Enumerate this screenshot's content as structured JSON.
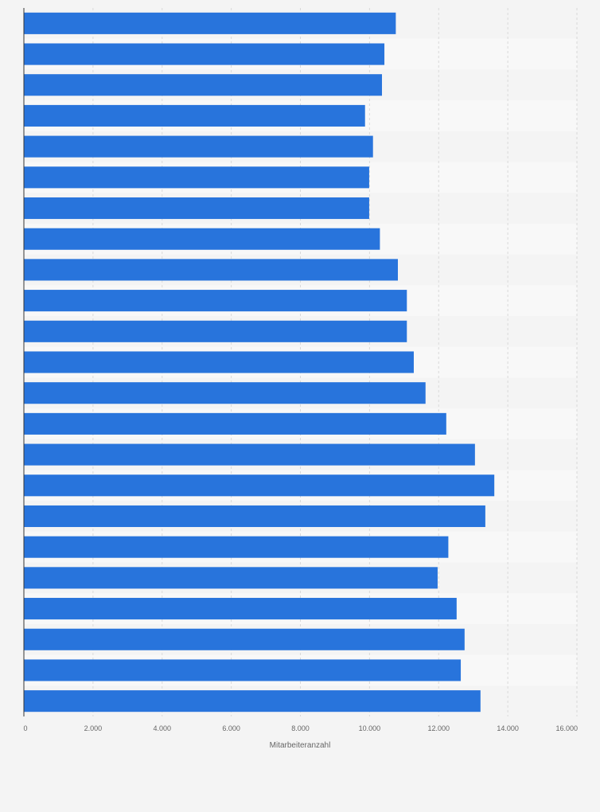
{
  "chart_data": {
    "type": "bar",
    "orientation": "horizontal",
    "xlabel": "Mitarbeiteranzahl",
    "xlim": [
      0,
      16000
    ],
    "xticks": [
      {
        "value": 0,
        "label": "0"
      },
      {
        "value": 2000,
        "label": "2.000"
      },
      {
        "value": 4000,
        "label": "4.000"
      },
      {
        "value": 6000,
        "label": "6.000"
      },
      {
        "value": 8000,
        "label": "8.000"
      },
      {
        "value": 10000,
        "label": "10.000"
      },
      {
        "value": 12000,
        "label": "12.000"
      },
      {
        "value": 14000,
        "label": "14.000"
      },
      {
        "value": 16000,
        "label": "16.000"
      }
    ],
    "values": [
      10760,
      10430,
      10360,
      9870,
      10100,
      9990,
      9990,
      10300,
      10820,
      11080,
      11080,
      11280,
      11620,
      12220,
      13050,
      13610,
      13350,
      12280,
      11970,
      12520,
      12750,
      12640,
      13210
    ],
    "grid": true,
    "legend": "none",
    "colors": {
      "bar": "#2874dc",
      "background": "#f4f4f4",
      "band_light": "#f8f8f8",
      "grid": "#d9d9d9",
      "tick_text": "#666666"
    }
  }
}
